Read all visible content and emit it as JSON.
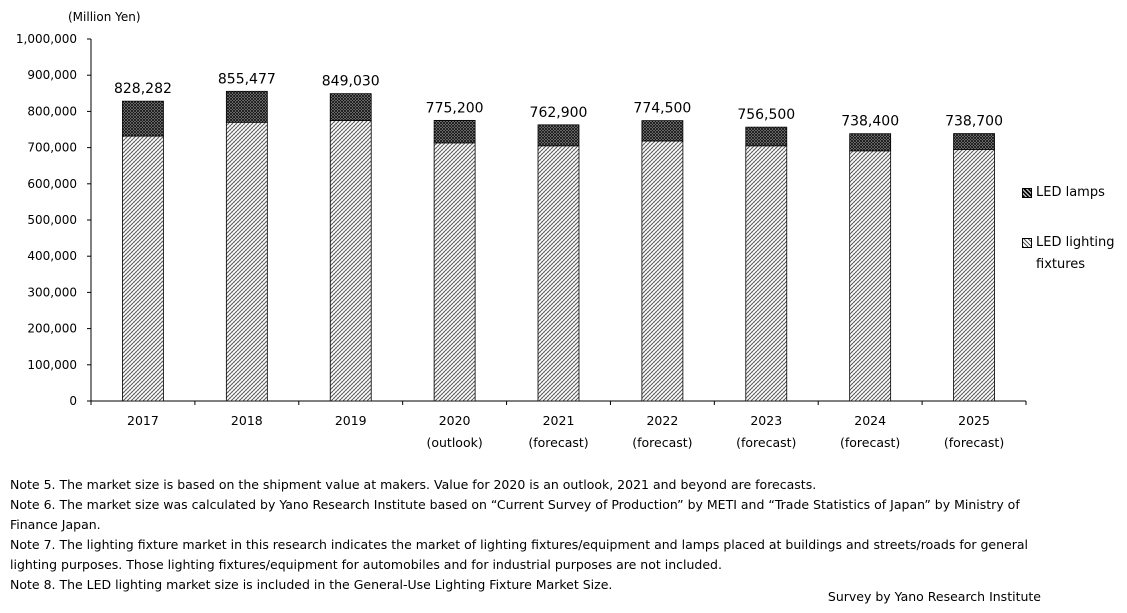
{
  "chart_data": {
    "type": "bar",
    "stacked": true,
    "ylabel": "(Million Yen)",
    "ylim": [
      0,
      1000000
    ],
    "ytick_labels": [
      "0",
      "100,000",
      "200,000",
      "300,000",
      "400,000",
      "500,000",
      "600,000",
      "700,000",
      "800,000",
      "900,000",
      "1,000,000"
    ],
    "categories": [
      {
        "year": "2017",
        "sub": ""
      },
      {
        "year": "2018",
        "sub": ""
      },
      {
        "year": "2019",
        "sub": ""
      },
      {
        "year": "2020",
        "sub": "(outlook)"
      },
      {
        "year": "2021",
        "sub": "(forecast)"
      },
      {
        "year": "2022",
        "sub": "(forecast)"
      },
      {
        "year": "2023",
        "sub": "(forecast)"
      },
      {
        "year": "2024",
        "sub": "(forecast)"
      },
      {
        "year": "2025",
        "sub": "(forecast)"
      }
    ],
    "series": [
      {
        "name": "LED lighting fixtures",
        "values": [
          732000,
          770000,
          775000,
          713000,
          705000,
          718000,
          705000,
          691000,
          695000
        ]
      },
      {
        "name": "LED lamps",
        "values": [
          96282,
          85477,
          74030,
          62200,
          57900,
          56500,
          51500,
          47400,
          43700
        ]
      }
    ],
    "totals": [
      828282,
      855477,
      849030,
      775200,
      762900,
      774500,
      756500,
      738400,
      738700
    ],
    "total_labels": [
      "828,282",
      "855,477",
      "849,030",
      "775,200",
      "762,900",
      "774,500",
      "756,500",
      "738,400",
      "738,700"
    ],
    "legend": {
      "position": "right",
      "items": [
        "LED lamps",
        "LED lighting fixtures"
      ]
    },
    "grid": false
  },
  "legend": {
    "lamps": "LED lamps",
    "fixtures_line1": "LED lighting",
    "fixtures_line2": "fixtures"
  },
  "notes": [
    "Note 5.  The market size is based on the shipment value at makers. Value for 2020 is an outlook, 2021 and beyond are forecasts.",
    "Note 6.  The market size was calculated by Yano Research Institute based on “Current Survey of Production” by METI and “Trade Statistics of Japan” by Ministry of",
    "Finance Japan.",
    "Note 7.  The lighting fixture market in this research indicates the market of lighting fixtures/equipment and lamps placed at buildings and streets/roads for general",
    "lighting purposes. Those lighting fixtures/equipment for automobiles and for industrial purposes are not included.",
    "Note 8.  The LED lighting market size is included in the General-Use Lighting Fixture Market Size."
  ],
  "credit": "Survey by Yano Research Institute"
}
